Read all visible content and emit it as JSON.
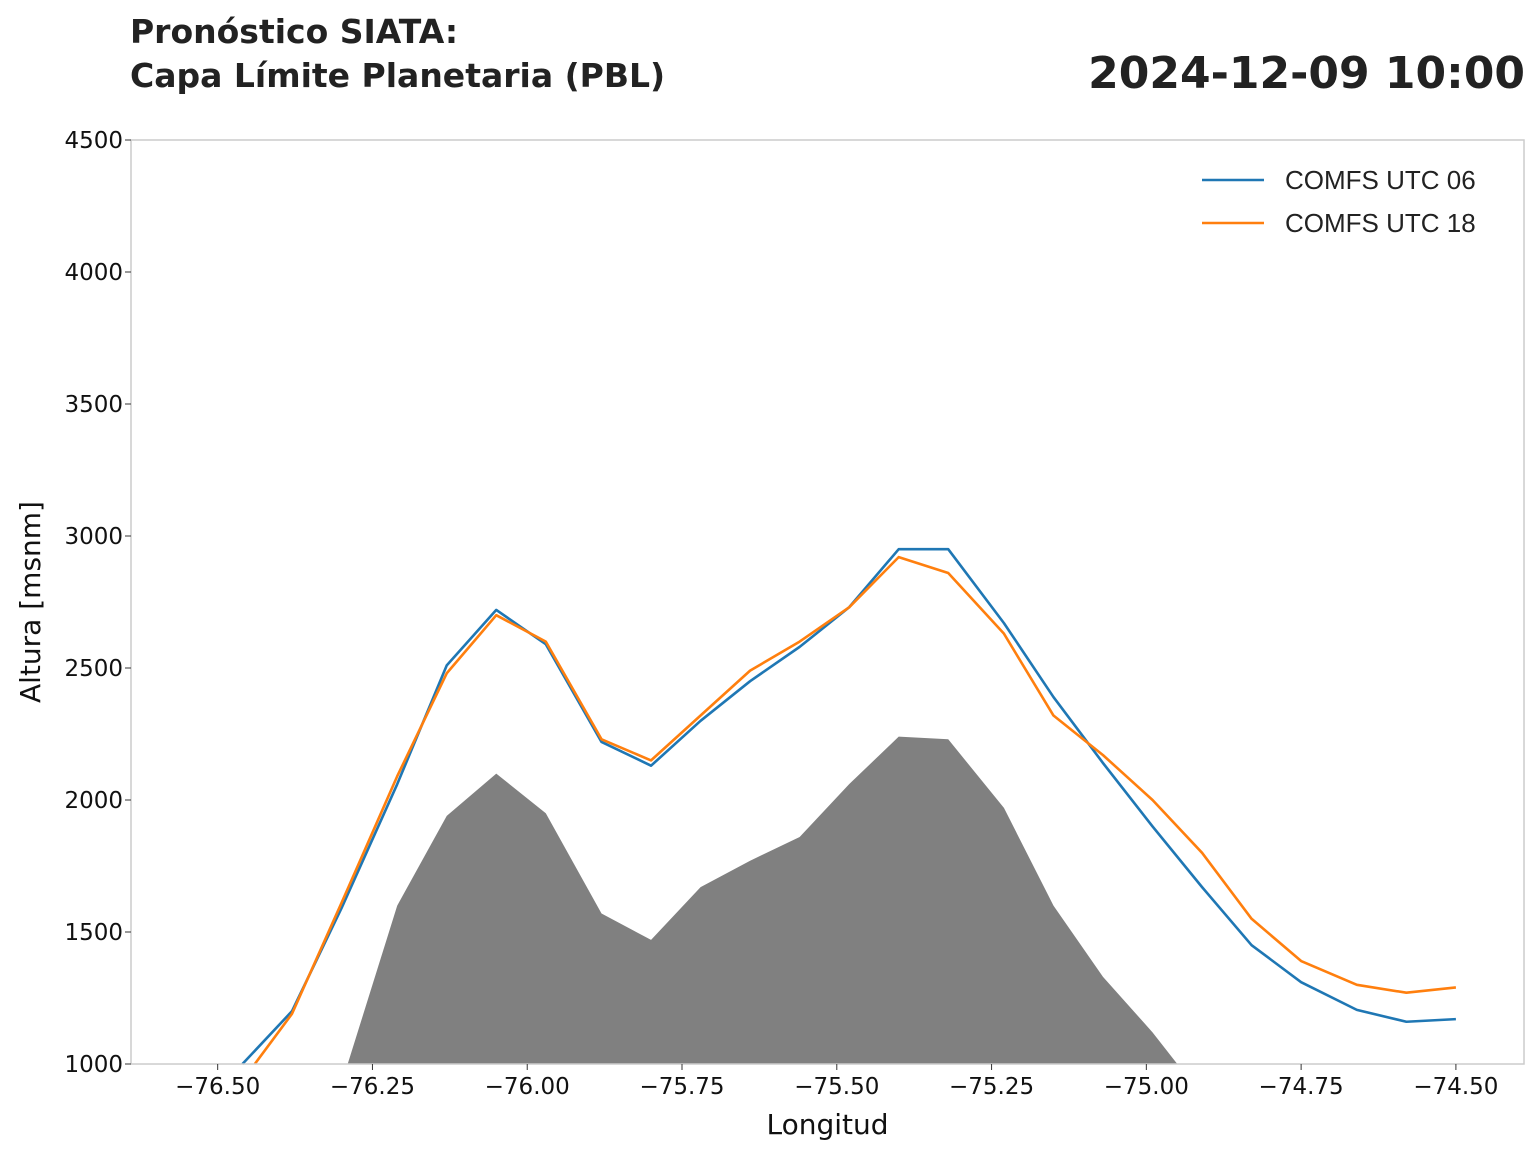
{
  "header": {
    "title_line1": "Pronóstico SIATA:",
    "title_line2": "Capa Límite Planetaria (PBL)",
    "datetime": "2024-12-09 10:00"
  },
  "chart_data": {
    "type": "line",
    "xlabel": "Longitud",
    "ylabel": "Altura [msnm]",
    "xlim": [
      -76.64,
      -74.39
    ],
    "ylim": [
      1000,
      4500
    ],
    "xticks": [
      -76.5,
      -76.25,
      -76.0,
      -75.75,
      -75.5,
      -75.25,
      -75.0,
      -74.75,
      -74.5
    ],
    "xtick_labels": [
      "−76.50",
      "−76.25",
      "−76.00",
      "−75.75",
      "−75.50",
      "−75.25",
      "−75.00",
      "−74.75",
      "−74.50"
    ],
    "yticks": [
      1000,
      1500,
      2000,
      2500,
      3000,
      3500,
      4000,
      4500
    ],
    "ytick_labels": [
      "1000",
      "1500",
      "2000",
      "2500",
      "3000",
      "3500",
      "4000",
      "4500"
    ],
    "grid": false,
    "legend_position": "top-right",
    "terrain": {
      "color": "#808080",
      "x": [
        -76.29,
        -76.21,
        -76.13,
        -76.05,
        -75.97,
        -75.88,
        -75.8,
        -75.72,
        -75.64,
        -75.56,
        -75.48,
        -75.4,
        -75.32,
        -75.23,
        -75.15,
        -75.07,
        -74.99,
        -74.95
      ],
      "values": [
        1000,
        1600,
        1940,
        2100,
        1950,
        1570,
        1470,
        1670,
        1770,
        1860,
        2060,
        2240,
        2230,
        1970,
        1600,
        1330,
        1120,
        1000
      ]
    },
    "series": [
      {
        "name": "COMFS UTC 06",
        "color": "#1f77b4",
        "x": [
          -76.46,
          -76.38,
          -76.3,
          -76.21,
          -76.13,
          -76.05,
          -75.97,
          -75.88,
          -75.8,
          -75.72,
          -75.64,
          -75.56,
          -75.48,
          -75.4,
          -75.32,
          -75.23,
          -75.15,
          -75.07,
          -74.99,
          -74.91,
          -74.83,
          -74.75,
          -74.66,
          -74.58,
          -74.5
        ],
        "values": [
          1000,
          1200,
          1590,
          2060,
          2510,
          2720,
          2590,
          2220,
          2130,
          2300,
          2450,
          2580,
          2730,
          2950,
          2950,
          2670,
          2390,
          2140,
          1900,
          1670,
          1450,
          1310,
          1205,
          1160,
          1170
        ]
      },
      {
        "name": "COMFS UTC 18",
        "color": "#ff7f0e",
        "x": [
          -76.44,
          -76.38,
          -76.3,
          -76.21,
          -76.13,
          -76.05,
          -75.97,
          -75.88,
          -75.8,
          -75.72,
          -75.64,
          -75.56,
          -75.48,
          -75.4,
          -75.32,
          -75.23,
          -75.15,
          -75.07,
          -74.99,
          -74.91,
          -74.83,
          -74.75,
          -74.66,
          -74.58,
          -74.5
        ],
        "values": [
          1000,
          1190,
          1610,
          2090,
          2480,
          2700,
          2600,
          2230,
          2150,
          2320,
          2490,
          2600,
          2730,
          2920,
          2860,
          2630,
          2320,
          2170,
          2000,
          1800,
          1550,
          1390,
          1300,
          1270,
          1290
        ]
      }
    ]
  }
}
